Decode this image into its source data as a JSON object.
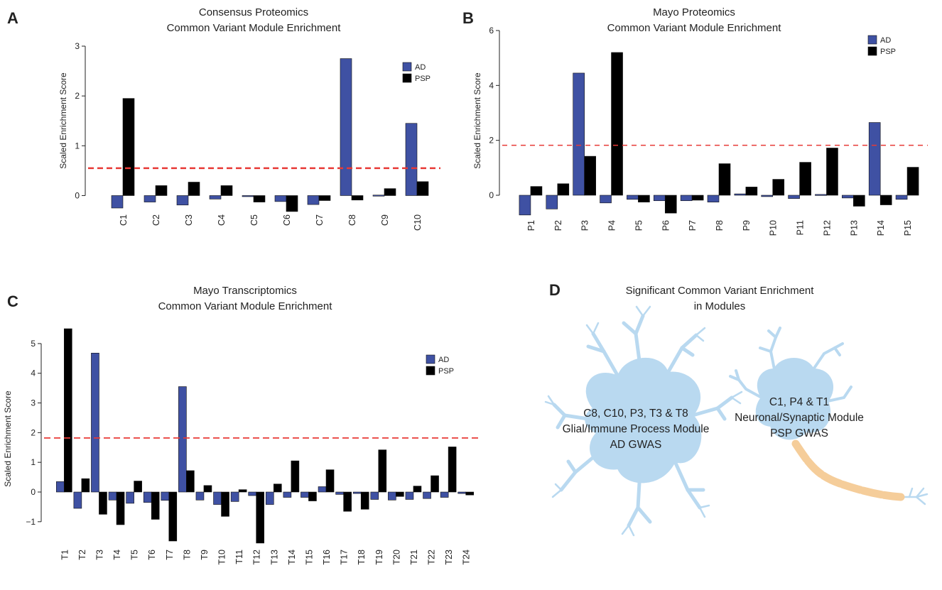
{
  "panels": {
    "A": "A",
    "B": "B",
    "C": "C",
    "D": "D"
  },
  "colors": {
    "ad": "#3f51a3",
    "psp": "#000000",
    "threshold": "#e83a36",
    "cell": "#b9d9f0",
    "axon": "#f5cd9a"
  },
  "chart_data": [
    {
      "id": "A",
      "type": "bar",
      "title": [
        "Consensus Proteomics",
        "Common Variant Module Enrichment"
      ],
      "xlabel": "",
      "ylabel": "Scaled Enrichment Score",
      "ylim": [
        -0.25,
        3
      ],
      "yticks": [
        0,
        1,
        2,
        3
      ],
      "threshold": 0.55,
      "legend_position": "top-right",
      "categories": [
        "C1",
        "C2",
        "C3",
        "C4",
        "C5",
        "C6",
        "C7",
        "C8",
        "C9",
        "C10"
      ],
      "series": [
        {
          "name": "AD",
          "color": "#3f51a3",
          "values": [
            -0.25,
            -0.13,
            -0.19,
            -0.07,
            -0.02,
            -0.12,
            -0.18,
            2.75,
            0.01,
            1.45
          ]
        },
        {
          "name": "PSP",
          "color": "#000000",
          "values": [
            1.95,
            0.2,
            0.27,
            0.2,
            -0.13,
            -0.32,
            -0.1,
            -0.09,
            0.14,
            0.28
          ]
        }
      ]
    },
    {
      "id": "B",
      "type": "bar",
      "title": [
        "Mayo Proteomics",
        "Common Variant Module Enrichment"
      ],
      "xlabel": "",
      "ylabel": "Scaled Enrichment Score",
      "ylim": [
        -0.75,
        6
      ],
      "yticks": [
        0,
        2,
        4,
        6
      ],
      "threshold": 1.82,
      "legend_position": "top-right",
      "categories": [
        "P1",
        "P2",
        "P3",
        "P4",
        "P5",
        "P6",
        "P7",
        "P8",
        "P9",
        "P10",
        "P11",
        "P12",
        "P13",
        "P14",
        "P15"
      ],
      "series": [
        {
          "name": "AD",
          "color": "#3f51a3",
          "values": [
            -0.72,
            -0.5,
            4.45,
            -0.28,
            -0.15,
            -0.2,
            -0.2,
            -0.25,
            0.05,
            -0.05,
            -0.12,
            0.03,
            -0.1,
            2.65,
            -0.15
          ]
        },
        {
          "name": "PSP",
          "color": "#000000",
          "values": [
            0.32,
            0.42,
            1.42,
            5.2,
            -0.25,
            -0.65,
            -0.18,
            1.15,
            0.3,
            0.58,
            1.2,
            1.72,
            -0.4,
            -0.35,
            1.02
          ]
        }
      ]
    },
    {
      "id": "C",
      "type": "bar",
      "title": [
        "Mayo Transcriptomics",
        "Common Variant Module Enrichment"
      ],
      "xlabel": "",
      "ylabel": "Scaled Enrichment Score",
      "ylim": [
        -1.65,
        5.5
      ],
      "yticks": [
        -1,
        0,
        1,
        2,
        3,
        4,
        5
      ],
      "threshold": 1.82,
      "legend_position": "top-right",
      "categories": [
        "T1",
        "T2",
        "T3",
        "T4",
        "T5",
        "T6",
        "T7",
        "T8",
        "T9",
        "T10",
        "T11",
        "T12",
        "T13",
        "T14",
        "T15",
        "T16",
        "T17",
        "T18",
        "T19",
        "T20",
        "T21",
        "T22",
        "T23",
        "T24"
      ],
      "series": [
        {
          "name": "AD",
          "color": "#3f51a3",
          "values": [
            0.35,
            -0.55,
            4.68,
            -0.27,
            -0.38,
            -0.35,
            -0.28,
            3.55,
            -0.27,
            -0.42,
            -0.32,
            -0.12,
            -0.42,
            -0.18,
            -0.18,
            0.18,
            -0.08,
            -0.05,
            -0.25,
            -0.27,
            -0.25,
            -0.22,
            -0.18,
            -0.05
          ]
        },
        {
          "name": "PSP",
          "color": "#000000",
          "values": [
            5.5,
            0.45,
            -0.75,
            -1.1,
            0.37,
            -0.92,
            -1.65,
            0.72,
            0.22,
            -0.82,
            0.08,
            -1.72,
            0.27,
            1.05,
            -0.3,
            0.75,
            -0.65,
            -0.58,
            1.42,
            -0.15,
            0.2,
            0.55,
            1.52,
            -0.1
          ]
        }
      ]
    }
  ],
  "panel_d": {
    "title": [
      "Significant Common Variant Enrichment",
      "in Modules"
    ],
    "glial": [
      "C8, C10, P3, T3 & T8",
      "Glial/Immune Process Module",
      "AD GWAS"
    ],
    "neuron": [
      "C1, P4 & T1",
      "Neuronal/Synaptic Module",
      "PSP GWAS"
    ]
  }
}
